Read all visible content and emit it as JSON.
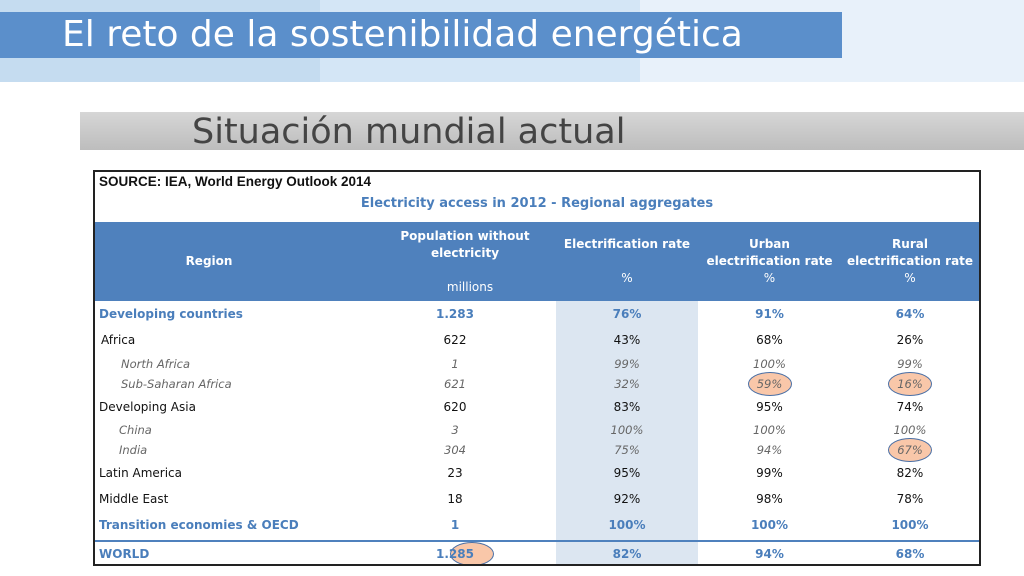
{
  "slide": {
    "title": "El reto de la sostenibilidad energética",
    "subtitle": "Situación mundial actual"
  },
  "table": {
    "source": "SOURCE: IEA, World Energy Outlook 2014",
    "caption": "Electricity access in 2012 - Regional aggregates",
    "headers": {
      "region": "Region",
      "population_line1": "Population without",
      "population_line2": "electricity",
      "population_unit": "millions",
      "elec_rate": "Electrification rate",
      "elec_unit": "%",
      "urban_line1": "Urban",
      "urban_line2": "electrification rate",
      "urban_unit": "%",
      "rural_line1": "Rural",
      "rural_line2": "electrification rate",
      "rural_unit": "%"
    },
    "rows": [
      {
        "region": "Developing countries",
        "pop": "1.283",
        "elec": "76%",
        "urban": "91%",
        "rural": "64%"
      },
      {
        "region": "Africa",
        "pop": "622",
        "elec": "43%",
        "urban": "68%",
        "rural": "26%"
      },
      {
        "region": "North Africa",
        "pop": "1",
        "elec": "99%",
        "urban": "100%",
        "rural": "99%"
      },
      {
        "region": "Sub-Saharan Africa",
        "pop": "621",
        "elec": "32%",
        "urban": "59%",
        "rural": "16%"
      },
      {
        "region": "Developing Asia",
        "pop": "620",
        "elec": "83%",
        "urban": "95%",
        "rural": "74%"
      },
      {
        "region": "China",
        "pop": "3",
        "elec": "100%",
        "urban": "100%",
        "rural": "100%"
      },
      {
        "region": "India",
        "pop": "304",
        "elec": "75%",
        "urban": "94%",
        "rural": "67%"
      },
      {
        "region": "Latin America",
        "pop": "23",
        "elec": "95%",
        "urban": "99%",
        "rural": "82%"
      },
      {
        "region": "Middle East",
        "pop": "18",
        "elec": "92%",
        "urban": "98%",
        "rural": "78%"
      },
      {
        "region": "Transition economies & OECD",
        "pop": "1",
        "elec": "100%",
        "urban": "100%",
        "rural": "100%"
      },
      {
        "region": "WORLD",
        "pop": "1.285",
        "elec": "82%",
        "urban": "94%",
        "rural": "68%"
      }
    ]
  },
  "colors": {
    "title_bar": "#5b8fcb",
    "header_fill": "#4f81bd",
    "accent_text": "#4a7ebb",
    "highlight": "#f7b48c"
  }
}
